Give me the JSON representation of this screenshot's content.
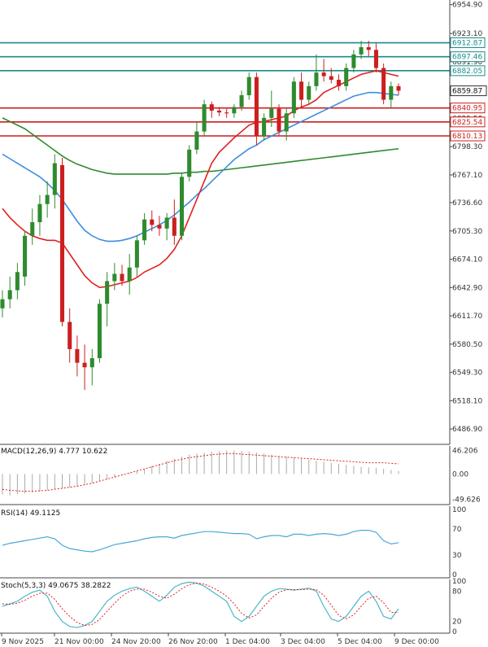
{
  "colors": {
    "bull": "#2e8b2e",
    "bear": "#cc1f1f",
    "ema_fast": "#e02020",
    "ema_mid": "#3d8ee0",
    "ema_slow": "#2e8b2e",
    "resistance": "#1a8a8a",
    "support": "#cc1f1f",
    "macd_signal": "#e02020",
    "macd_hist": "#aaaaaa",
    "rsi": "#4aa8d8",
    "stoch_k": "#4ab8c8",
    "stoch_d": "#e02020"
  },
  "chart_data": [
    {
      "type": "candlestick",
      "panel": "main",
      "y_ticks": [
        "6954.90",
        "6923.10",
        "6891.90",
        "6829.50",
        "6798.30",
        "6767.10",
        "6736.60",
        "6705.30",
        "6674.10",
        "6642.90",
        "6611.70",
        "6580.50",
        "6549.30",
        "6518.10",
        "6486.90"
      ],
      "ylim": [
        6470,
        6960
      ],
      "current_price": "6859.87",
      "levels": [
        {
          "value": 6912.87,
          "label": "6912.87",
          "kind": "resistance"
        },
        {
          "value": 6897.46,
          "label": "6897.46",
          "kind": "resistance"
        },
        {
          "value": 6882.05,
          "label": "6882.05",
          "kind": "resistance"
        },
        {
          "value": 6840.95,
          "label": "6840.95",
          "kind": "support"
        },
        {
          "value": 6825.54,
          "label": "6825.54",
          "kind": "support"
        },
        {
          "value": 6810.13,
          "label": "6810.13",
          "kind": "support"
        }
      ],
      "candles": [
        [
          6620,
          6640,
          6610,
          6630
        ],
        [
          6630,
          6655,
          6620,
          6640
        ],
        [
          6640,
          6670,
          6630,
          6660
        ],
        [
          6655,
          6705,
          6645,
          6700
        ],
        [
          6700,
          6730,
          6690,
          6715
        ],
        [
          6715,
          6745,
          6700,
          6735
        ],
        [
          6735,
          6760,
          6720,
          6745
        ],
        [
          6745,
          6790,
          6730,
          6780
        ],
        [
          6778,
          6786,
          6600,
          6605
        ],
        [
          6605,
          6620,
          6560,
          6575
        ],
        [
          6575,
          6590,
          6545,
          6560
        ],
        [
          6560,
          6580,
          6530,
          6555
        ],
        [
          6555,
          6575,
          6535,
          6565
        ],
        [
          6565,
          6630,
          6560,
          6625
        ],
        [
          6625,
          6660,
          6600,
          6650
        ],
        [
          6650,
          6670,
          6640,
          6658
        ],
        [
          6658,
          6668,
          6645,
          6650
        ],
        [
          6650,
          6680,
          6635,
          6665
        ],
        [
          6665,
          6700,
          6655,
          6695
        ],
        [
          6695,
          6725,
          6690,
          6718
        ],
        [
          6718,
          6728,
          6705,
          6712
        ],
        [
          6712,
          6722,
          6700,
          6708
        ],
        [
          6708,
          6725,
          6695,
          6720
        ],
        [
          6720,
          6740,
          6690,
          6700
        ],
        [
          6700,
          6770,
          6695,
          6765
        ],
        [
          6765,
          6800,
          6760,
          6795
        ],
        [
          6795,
          6825,
          6790,
          6815
        ],
        [
          6815,
          6850,
          6810,
          6845
        ],
        [
          6845,
          6848,
          6830,
          6838
        ],
        [
          6838,
          6842,
          6832,
          6836
        ],
        [
          6836,
          6840,
          6830,
          6835
        ],
        [
          6835,
          6845,
          6830,
          6842
        ],
        [
          6842,
          6860,
          6838,
          6855
        ],
        [
          6855,
          6880,
          6850,
          6875
        ],
        [
          6875,
          6880,
          6800,
          6810
        ],
        [
          6810,
          6835,
          6805,
          6830
        ],
        [
          6830,
          6860,
          6820,
          6840
        ],
        [
          6840,
          6845,
          6810,
          6815
        ],
        [
          6815,
          6840,
          6805,
          6835
        ],
        [
          6835,
          6875,
          6830,
          6870
        ],
        [
          6870,
          6880,
          6840,
          6850
        ],
        [
          6850,
          6870,
          6845,
          6865
        ],
        [
          6865,
          6900,
          6860,
          6880
        ],
        [
          6880,
          6895,
          6870,
          6876
        ],
        [
          6876,
          6885,
          6868,
          6872
        ],
        [
          6872,
          6878,
          6860,
          6865
        ],
        [
          6865,
          6890,
          6860,
          6885
        ],
        [
          6885,
          6905,
          6880,
          6900
        ],
        [
          6900,
          6915,
          6895,
          6908
        ],
        [
          6908,
          6915,
          6898,
          6905
        ],
        [
          6905,
          6912,
          6880,
          6885
        ],
        [
          6885,
          6890,
          6845,
          6850
        ],
        [
          6850,
          6870,
          6840,
          6865
        ],
        [
          6865,
          6868,
          6855,
          6860
        ]
      ],
      "ema_fast": [
        6730,
        6720,
        6712,
        6705,
        6700,
        6697,
        6695,
        6695,
        6692,
        6680,
        6668,
        6656,
        6648,
        6643,
        6644,
        6646,
        6648,
        6650,
        6654,
        6660,
        6664,
        6668,
        6675,
        6685,
        6700,
        6720,
        6740,
        6760,
        6780,
        6792,
        6800,
        6808,
        6815,
        6822,
        6825,
        6826,
        6828,
        6830,
        6832,
        6838,
        6842,
        6845,
        6850,
        6858,
        6862,
        6866,
        6870,
        6874,
        6878,
        6880,
        6882,
        6880,
        6878,
        6876
      ],
      "ema_mid": [
        6790,
        6785,
        6780,
        6775,
        6770,
        6765,
        6758,
        6750,
        6740,
        6728,
        6716,
        6706,
        6700,
        6696,
        6694,
        6694,
        6695,
        6697,
        6700,
        6704,
        6708,
        6712,
        6717,
        6723,
        6730,
        6737,
        6745,
        6752,
        6760,
        6768,
        6776,
        6784,
        6790,
        6796,
        6800,
        6806,
        6810,
        6814,
        6818,
        6822,
        6826,
        6830,
        6834,
        6838,
        6842,
        6846,
        6850,
        6854,
        6856,
        6858,
        6858,
        6857,
        6856,
        6855
      ],
      "ema_slow": [
        6830,
        6826,
        6822,
        6818,
        6812,
        6806,
        6800,
        6794,
        6788,
        6783,
        6779,
        6776,
        6773,
        6771,
        6769,
        6768,
        6768,
        6768,
        6768,
        6768,
        6768,
        6768,
        6768,
        6769,
        6769,
        6770,
        6770,
        6771,
        6771,
        6772,
        6773,
        6774,
        6775,
        6776,
        6777,
        6778,
        6779,
        6780,
        6781,
        6782,
        6783,
        6784,
        6785,
        6786,
        6787,
        6788,
        6789,
        6790,
        6791,
        6792,
        6793,
        6794,
        6795,
        6796
      ]
    },
    {
      "type": "macd",
      "panel": "macd",
      "title": "MACD(12,26,9) 4.777 10.622",
      "y_ticks": [
        "46.206",
        "0.00",
        "-49.626"
      ],
      "ylim": [
        -60,
        55
      ],
      "histogram": [
        -40,
        -42,
        -40,
        -38,
        -36,
        -34,
        -32,
        -30,
        -28,
        -26,
        -24,
        -20,
        -18,
        -14,
        -10,
        -6,
        -2,
        2,
        6,
        10,
        16,
        20,
        26,
        30,
        34,
        38,
        40,
        42,
        44,
        45,
        46,
        46,
        45,
        44,
        42,
        40,
        38,
        36,
        34,
        32,
        30,
        28,
        26,
        24,
        22,
        20,
        18,
        16,
        14,
        13,
        12,
        10,
        8,
        6
      ],
      "signal": [
        -30,
        -32,
        -33,
        -34,
        -34,
        -33,
        -32,
        -30,
        -28,
        -26,
        -24,
        -21,
        -18,
        -14,
        -10,
        -6,
        -2,
        2,
        6,
        10,
        14,
        18,
        22,
        26,
        29,
        32,
        34,
        36,
        38,
        39,
        40,
        40,
        39,
        38,
        37,
        36,
        35,
        34,
        33,
        32,
        31,
        30,
        29,
        28,
        27,
        26,
        25,
        24,
        23,
        22,
        22,
        22,
        21,
        20
      ]
    },
    {
      "type": "line",
      "panel": "rsi",
      "title": "RSI(14) 49.1125",
      "y_ticks": [
        "100",
        "70",
        "30",
        "0"
      ],
      "ylim": [
        0,
        100
      ],
      "values": [
        45,
        48,
        50,
        52,
        54,
        56,
        58,
        55,
        45,
        40,
        38,
        36,
        35,
        38,
        42,
        46,
        48,
        50,
        52,
        55,
        57,
        58,
        58,
        56,
        60,
        62,
        64,
        66,
        66,
        65,
        64,
        63,
        63,
        62,
        55,
        58,
        60,
        60,
        58,
        62,
        62,
        60,
        62,
        63,
        62,
        60,
        62,
        66,
        68,
        68,
        65,
        52,
        47,
        49
      ]
    },
    {
      "type": "line",
      "panel": "stoch",
      "title": "Stoch(5,3,3) 49.0675 38.2822",
      "y_ticks": [
        "100",
        "80",
        "20",
        "0"
      ],
      "ylim": [
        0,
        100
      ],
      "k": [
        50,
        55,
        60,
        70,
        78,
        82,
        70,
        40,
        20,
        10,
        8,
        12,
        20,
        40,
        60,
        72,
        80,
        85,
        88,
        80,
        70,
        60,
        72,
        88,
        95,
        98,
        96,
        90,
        80,
        70,
        60,
        30,
        20,
        30,
        50,
        70,
        80,
        85,
        84,
        82,
        84,
        86,
        80,
        50,
        25,
        20,
        30,
        50,
        70,
        80,
        60,
        30,
        25,
        45
      ],
      "d": [
        55,
        54,
        56,
        62,
        70,
        76,
        76,
        64,
        45,
        30,
        18,
        12,
        14,
        24,
        40,
        56,
        70,
        80,
        84,
        84,
        78,
        70,
        66,
        74,
        85,
        93,
        96,
        94,
        88,
        80,
        70,
        55,
        36,
        27,
        33,
        50,
        66,
        78,
        83,
        83,
        83,
        84,
        83,
        72,
        52,
        32,
        25,
        33,
        50,
        66,
        70,
        57,
        38,
        38
      ]
    }
  ],
  "x_labels": [
    "9 Nov 2025",
    "21 Nov 00:00",
    "24 Nov 20:00",
    "26 Nov 20:00",
    "1 Dec 04:00",
    "3 Dec 04:00",
    "5 Dec 04:00",
    "9 Dec 00:00"
  ]
}
